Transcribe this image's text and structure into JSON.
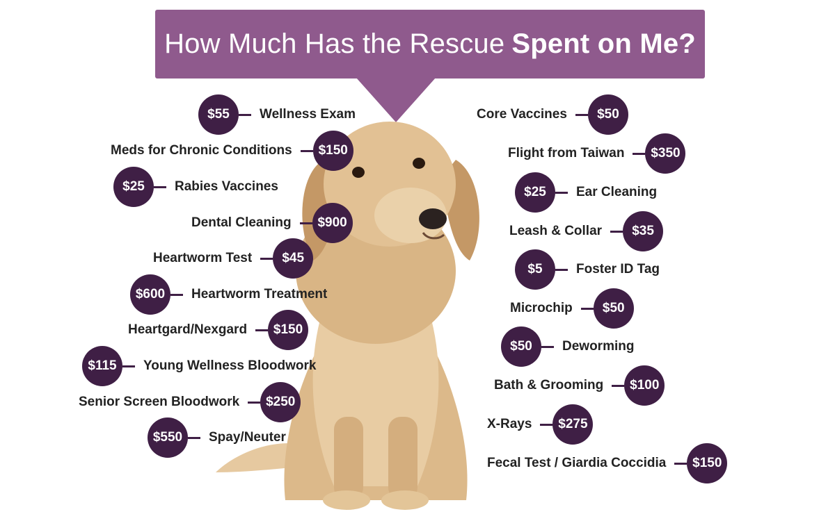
{
  "title": {
    "regular": "How Much Has the Rescue",
    "bold": "Spent on Me?"
  },
  "left_items": [
    {
      "label": "Wellness Exam",
      "price": "$55"
    },
    {
      "label": "Meds for Chronic Conditions",
      "price": "$150"
    },
    {
      "label": "Rabies Vaccines",
      "price": "$25"
    },
    {
      "label": "Dental Cleaning",
      "price": "$900"
    },
    {
      "label": "Heartworm Test",
      "price": "$45"
    },
    {
      "label": "Heartworm Treatment",
      "price": "$600"
    },
    {
      "label": "Heartgard/Nexgard",
      "price": "$150"
    },
    {
      "label": "Young Wellness Bloodwork",
      "price": "$115"
    },
    {
      "label": "Senior Screen Bloodwork",
      "price": "$250"
    },
    {
      "label": "Spay/Neuter",
      "price": "$550"
    }
  ],
  "right_items": [
    {
      "label": "Core Vaccines",
      "price": "$50"
    },
    {
      "label": "Flight from Taiwan",
      "price": "$350"
    },
    {
      "label": "Ear Cleaning",
      "price": "$25"
    },
    {
      "label": "Leash & Collar",
      "price": "$35"
    },
    {
      "label": "Foster ID Tag",
      "price": "$5"
    },
    {
      "label": "Microchip",
      "price": "$50"
    },
    {
      "label": "Deworming",
      "price": "$50"
    },
    {
      "label": "Bath & Grooming",
      "price": "$100"
    },
    {
      "label": "X-Rays",
      "price": "$275"
    },
    {
      "label": "Fecal Test / Giardia Coccidia",
      "price": "$150"
    }
  ],
  "colors": {
    "banner": "#8f5a8d",
    "badge": "#3f1f45",
    "dog_fur": "#e2c194"
  },
  "image": "golden-retriever-dog"
}
